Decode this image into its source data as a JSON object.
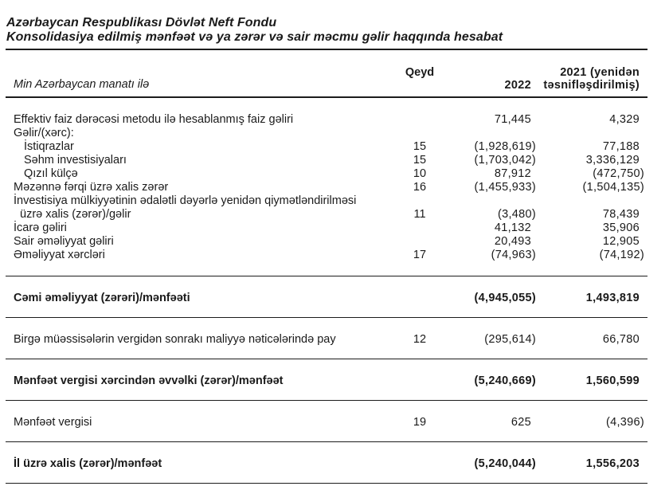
{
  "title": {
    "line1": "Azərbaycan Respublikası Dövlət Neft Fondu",
    "line2": "Konsolidasiya edilmiş mənfəət və ya zərər və sair məcmu gəlir haqqında hesabat"
  },
  "columns": {
    "unit": "Min Azərbaycan manatı ilə",
    "note": "Qeyd",
    "y2022": "2022",
    "y2021_line1": "2021 (yenidən",
    "y2021_line2": "təsnifləşdirilmiş)"
  },
  "body": [
    {
      "label": "Effektiv faiz dərəcəsi metodu ilə hesablanmış faiz gəliri",
      "note": "",
      "v2022": "71,445",
      "v2021": "4,329"
    },
    {
      "label": "Gəlir/(xərc):",
      "note": "",
      "v2022": "",
      "v2021": ""
    },
    {
      "label": "İstiqrazlar",
      "note": "15",
      "v2022": "(1,928,619)",
      "v2021": "77,188"
    },
    {
      "label": "Səhm investisiyaları",
      "note": "15",
      "v2022": "(1,703,042)",
      "v2021": "3,336,129"
    },
    {
      "label": "Qızıl külçə",
      "note": "10",
      "v2022": "87,912",
      "v2021": "(472,750)"
    },
    {
      "label": "Məzənnə fərqi üzrə xalis zərər",
      "note": "16",
      "v2022": "(1,455,933)",
      "v2021": "(1,504,135)"
    },
    {
      "label": "İnvestisiya mülkiyyətinin ədalətli dəyərlə yenidən qiymətləndirilməsi",
      "note": "",
      "v2022": "",
      "v2021": ""
    },
    {
      "label": "üzrə xalis (zərər)/gəlir",
      "note": "11",
      "v2022": "(3,480)",
      "v2021": "78,439"
    },
    {
      "label": "İcarə gəliri",
      "note": "",
      "v2022": "41,132",
      "v2021": "35,906"
    },
    {
      "label": "Sair əməliyyat gəliri",
      "note": "",
      "v2022": "20,493",
      "v2021": "12,905"
    },
    {
      "label": "Əməliyyat xərcləri",
      "note": "17",
      "v2022": "(74,963)",
      "v2021": "(74,192)"
    }
  ],
  "sections": {
    "operating_total": {
      "label": "Cəmi əməliyyat (zərəri)/mənfəəti",
      "note": "",
      "v2022": "(4,945,055)",
      "v2021": "1,493,819"
    },
    "joint_ventures": {
      "label": "Birgə müəssisələrin vergidən sonrakı maliyyə nəticələrində pay",
      "note": "12",
      "v2022": "(295,614)",
      "v2021": "66,780"
    },
    "pre_tax": {
      "label": "Mənfəət vergisi xərcindən əvvəlki (zərər)/mənfəət",
      "note": "",
      "v2022": "(5,240,669)",
      "v2021": "1,560,599"
    },
    "income_tax": {
      "label": "Mənfəət vergisi",
      "note": "19",
      "v2022": "625",
      "v2021": "(4,396)"
    },
    "net_result": {
      "label": "İl üzrə xalis (zərər)/mənfəət",
      "note": "",
      "v2022": "(5,240,044)",
      "v2021": "1,556,203"
    }
  }
}
